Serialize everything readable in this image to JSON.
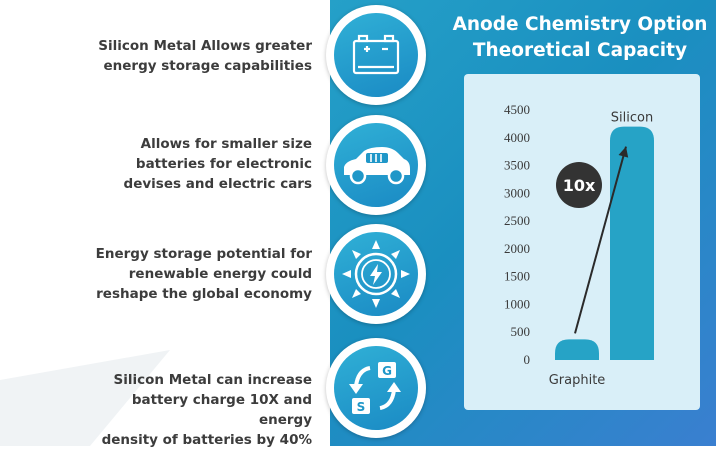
{
  "features": [
    {
      "lines": [
        "Silicon Metal Allows greater",
        "energy storage capabilities"
      ],
      "icon": "battery-icon"
    },
    {
      "lines": [
        "Allows for smaller size",
        "batteries for electronic",
        "devises and electric cars"
      ],
      "icon": "electric-car-icon"
    },
    {
      "lines": [
        "Energy storage potential for",
        "renewable energy could",
        "reshape the global economy"
      ],
      "icon": "sun-energy-icon"
    },
    {
      "lines": [
        "Silicon Metal can increase",
        "battery charge 10X and energy",
        "density of batteries by 40%"
      ],
      "icon": "recycle-arrows-icon"
    }
  ],
  "icon_letters": {
    "g": "G",
    "s": "S"
  },
  "colors": {
    "accent": "#1f97c8",
    "bar": "#26a3c6",
    "badge": "#333333",
    "panel": "#d9eff8"
  },
  "chart_data": {
    "type": "bar",
    "title": "Anode Chemistry Option Theoretical Capacity",
    "title_lines": [
      "Anode Chemistry Option",
      "Theoretical Capacity"
    ],
    "categories": [
      "Graphite",
      "Silicon"
    ],
    "values": [
      372,
      4200
    ],
    "y_ticks": [
      0,
      500,
      1000,
      1500,
      2000,
      2500,
      3000,
      3500,
      4000,
      4500
    ],
    "ylim": [
      0,
      4500
    ],
    "annotation": "10x",
    "grid": false,
    "legend": "none"
  }
}
